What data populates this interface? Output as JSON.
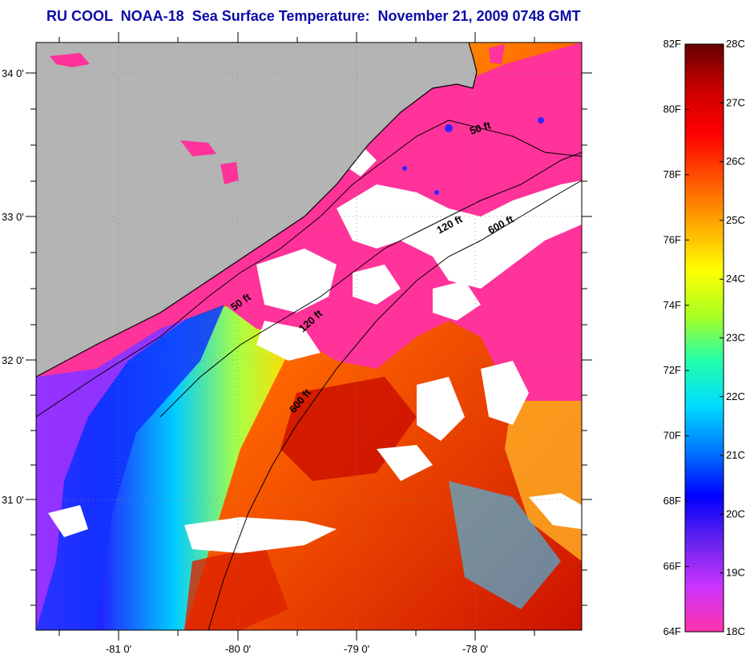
{
  "title": "RU COOL  NOAA-18  Sea Surface Temperature:  November 21, 2009 0748 GMT",
  "map": {
    "lat_labels": [
      "34 0'",
      "33 0'",
      "32 0'",
      "31 0'"
    ],
    "lon_labels": [
      "-81 0'",
      "-80 0'",
      "-79 0'",
      "-78 0'"
    ],
    "contour_labels": [
      "50 ft",
      "120 ft",
      "600 ft",
      "50 ft",
      "120 ft",
      "600 ft"
    ]
  },
  "color_scale": {
    "fahrenheit_labels": [
      "82F",
      "80F",
      "78F",
      "76F",
      "74F",
      "72F",
      "70F",
      "68F",
      "66F",
      "64F"
    ],
    "celsius_labels": [
      "28C",
      "27C",
      "26C",
      "25C",
      "24C",
      "23C",
      "22C",
      "21C",
      "20C",
      "19C",
      "18C"
    ],
    "colors": [
      "#ff33aa",
      "#cc33ff",
      "#6622ee",
      "#0000ff",
      "#0077ff",
      "#00ddff",
      "#22ffaa",
      "#aaff22",
      "#ffff00",
      "#ffaa00",
      "#ff5500",
      "#ff0000",
      "#cc0000",
      "#660000"
    ]
  }
}
